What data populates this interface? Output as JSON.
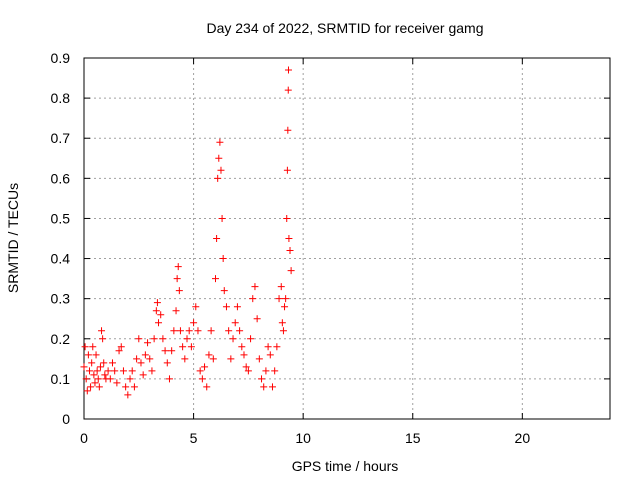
{
  "chart_data": {
    "type": "scatter",
    "title": "Day 234 of 2022, SRMTID for receiver gamg",
    "xlabel": "GPS time / hours",
    "ylabel": "SRMTID / TECUs",
    "xlim": [
      0,
      24
    ],
    "ylim": [
      0,
      0.9
    ],
    "xticks": [
      0,
      5,
      10,
      15,
      20
    ],
    "yticks": [
      0,
      0.1,
      0.2,
      0.3,
      0.4,
      0.5,
      0.6,
      0.7,
      0.8,
      0.9
    ],
    "grid": true,
    "marker": "+",
    "series": [
      {
        "name": "SRMTID",
        "color": "#ff0000",
        "points": [
          [
            0.0,
            0.13
          ],
          [
            0.05,
            0.18
          ],
          [
            0.1,
            0.1
          ],
          [
            0.15,
            0.07
          ],
          [
            0.2,
            0.16
          ],
          [
            0.25,
            0.12
          ],
          [
            0.3,
            0.08
          ],
          [
            0.35,
            0.14
          ],
          [
            0.4,
            0.18
          ],
          [
            0.45,
            0.11
          ],
          [
            0.5,
            0.09
          ],
          [
            0.55,
            0.16
          ],
          [
            0.6,
            0.12
          ],
          [
            0.65,
            0.1
          ],
          [
            0.7,
            0.08
          ],
          [
            0.75,
            0.13
          ],
          [
            0.8,
            0.22
          ],
          [
            0.85,
            0.2
          ],
          [
            0.9,
            0.14
          ],
          [
            0.95,
            0.11
          ],
          [
            1.0,
            0.1
          ],
          [
            1.1,
            0.12
          ],
          [
            1.2,
            0.1
          ],
          [
            1.3,
            0.14
          ],
          [
            1.4,
            0.12
          ],
          [
            1.5,
            0.09
          ],
          [
            1.6,
            0.17
          ],
          [
            1.7,
            0.18
          ],
          [
            1.8,
            0.12
          ],
          [
            1.9,
            0.08
          ],
          [
            2.0,
            0.06
          ],
          [
            2.1,
            0.1
          ],
          [
            2.2,
            0.12
          ],
          [
            2.3,
            0.08
          ],
          [
            2.4,
            0.15
          ],
          [
            2.5,
            0.2
          ],
          [
            2.6,
            0.14
          ],
          [
            2.7,
            0.11
          ],
          [
            2.8,
            0.16
          ],
          [
            2.9,
            0.19
          ],
          [
            3.0,
            0.15
          ],
          [
            3.1,
            0.12
          ],
          [
            3.2,
            0.2
          ],
          [
            3.3,
            0.27
          ],
          [
            3.35,
            0.29
          ],
          [
            3.4,
            0.24
          ],
          [
            3.5,
            0.26
          ],
          [
            3.6,
            0.2
          ],
          [
            3.7,
            0.17
          ],
          [
            3.8,
            0.14
          ],
          [
            3.9,
            0.1
          ],
          [
            4.0,
            0.17
          ],
          [
            4.1,
            0.22
          ],
          [
            4.2,
            0.27
          ],
          [
            4.25,
            0.35
          ],
          [
            4.3,
            0.38
          ],
          [
            4.35,
            0.32
          ],
          [
            4.4,
            0.22
          ],
          [
            4.5,
            0.18
          ],
          [
            4.6,
            0.15
          ],
          [
            4.7,
            0.2
          ],
          [
            4.8,
            0.22
          ],
          [
            4.9,
            0.18
          ],
          [
            5.0,
            0.24
          ],
          [
            5.1,
            0.28
          ],
          [
            5.2,
            0.22
          ],
          [
            5.3,
            0.12
          ],
          [
            5.4,
            0.1
          ],
          [
            5.5,
            0.13
          ],
          [
            5.6,
            0.08
          ],
          [
            5.7,
            0.16
          ],
          [
            5.8,
            0.22
          ],
          [
            5.9,
            0.15
          ],
          [
            6.0,
            0.35
          ],
          [
            6.05,
            0.45
          ],
          [
            6.1,
            0.6
          ],
          [
            6.15,
            0.65
          ],
          [
            6.2,
            0.69
          ],
          [
            6.25,
            0.62
          ],
          [
            6.3,
            0.5
          ],
          [
            6.35,
            0.4
          ],
          [
            6.4,
            0.32
          ],
          [
            6.5,
            0.28
          ],
          [
            6.6,
            0.22
          ],
          [
            6.7,
            0.15
          ],
          [
            6.8,
            0.2
          ],
          [
            6.9,
            0.24
          ],
          [
            7.0,
            0.28
          ],
          [
            7.1,
            0.22
          ],
          [
            7.2,
            0.18
          ],
          [
            7.3,
            0.16
          ],
          [
            7.4,
            0.13
          ],
          [
            7.5,
            0.12
          ],
          [
            7.6,
            0.2
          ],
          [
            7.7,
            0.3
          ],
          [
            7.8,
            0.33
          ],
          [
            7.9,
            0.25
          ],
          [
            8.0,
            0.15
          ],
          [
            8.1,
            0.1
          ],
          [
            8.2,
            0.08
          ],
          [
            8.3,
            0.12
          ],
          [
            8.4,
            0.18
          ],
          [
            8.5,
            0.16
          ],
          [
            8.6,
            0.08
          ],
          [
            8.7,
            0.12
          ],
          [
            8.8,
            0.18
          ],
          [
            8.9,
            0.3
          ],
          [
            9.0,
            0.33
          ],
          [
            9.05,
            0.24
          ],
          [
            9.1,
            0.22
          ],
          [
            9.15,
            0.28
          ],
          [
            9.2,
            0.3
          ],
          [
            9.25,
            0.5
          ],
          [
            9.28,
            0.62
          ],
          [
            9.3,
            0.72
          ],
          [
            9.32,
            0.82
          ],
          [
            9.33,
            0.87
          ],
          [
            9.35,
            0.45
          ],
          [
            9.4,
            0.42
          ],
          [
            9.45,
            0.37
          ]
        ]
      }
    ]
  }
}
